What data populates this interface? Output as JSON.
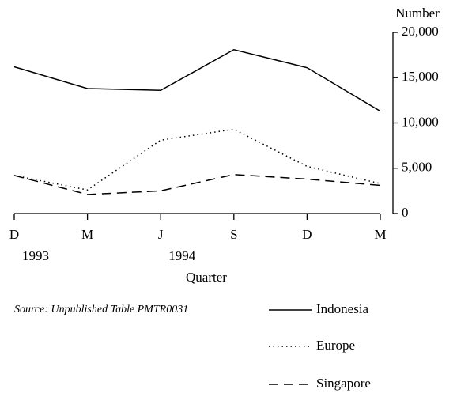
{
  "chart_data": {
    "type": "line",
    "y_label": "Number",
    "x_label": "Quarter",
    "source": "Source:  Unpublished Table PMTR0031",
    "categories": [
      "D",
      "M",
      "J",
      "S",
      "D",
      "M"
    ],
    "category_groups": [
      "1993",
      null,
      "1994",
      null,
      null,
      null
    ],
    "series": [
      {
        "name": "Indonesia",
        "color": "#000000",
        "dash": "solid",
        "values": [
          16200,
          13800,
          13600,
          18100,
          16100,
          11300
        ]
      },
      {
        "name": "Europe",
        "color": "#000000",
        "dash": "dotted",
        "values": [
          4200,
          2600,
          8100,
          9300,
          5200,
          3300
        ]
      },
      {
        "name": "Singapore",
        "color": "#000000",
        "dash": "dashed",
        "values": [
          4200,
          2100,
          2500,
          4300,
          3800,
          3100
        ]
      }
    ],
    "ylim": [
      0,
      20000
    ],
    "yticks": [
      0,
      {
        "value": 5000,
        "label": "5,000"
      },
      {
        "value": 10000,
        "label": "10,000"
      },
      {
        "value": 15000,
        "label": "15,000"
      },
      {
        "value": 20000,
        "label": "20,000"
      }
    ],
    "y_axis_side": "right",
    "grid": false,
    "legend": "bottom"
  }
}
